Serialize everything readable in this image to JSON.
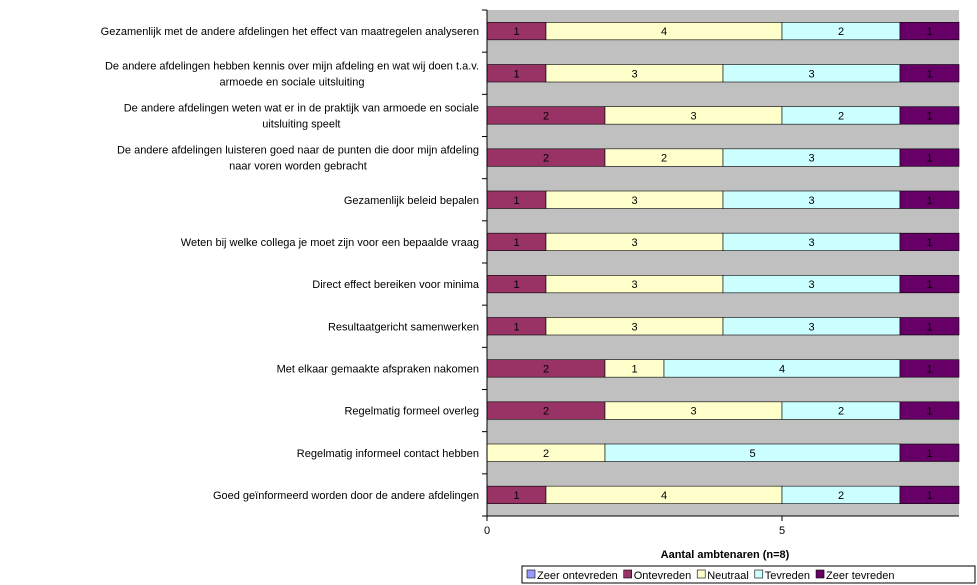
{
  "chart_data": {
    "type": "bar",
    "orientation": "horizontal",
    "stacked": true,
    "categories": [
      [
        "Gezamenlijk met de andere afdelingen het effect van maatregelen analyseren"
      ],
      [
        "De andere afdelingen hebben kennis over mijn afdeling en wat wij doen t.a.v.",
        "armoede en sociale uitsluiting"
      ],
      [
        "De andere afdelingen weten wat er in de praktijk van armoede en sociale",
        "uitsluiting speelt"
      ],
      [
        "De andere afdelingen luisteren goed naar de punten die door mijn afdeling",
        "naar voren worden gebracht"
      ],
      [
        "Gezamenlijk beleid bepalen"
      ],
      [
        "Weten bij welke collega je moet zijn voor een bepaalde vraag"
      ],
      [
        "Direct effect bereiken voor minima"
      ],
      [
        "Resultaatgericht samenwerken"
      ],
      [
        "Met elkaar gemaakte afspraken nakomen"
      ],
      [
        "Regelmatig formeel overleg"
      ],
      [
        "Regelmatig informeel contact hebben"
      ],
      [
        "Goed geïnformeerd worden door de andere afdelingen"
      ]
    ],
    "series": [
      {
        "name": "Zeer ontevreden",
        "color": "#9999ff",
        "values": [
          0,
          0,
          0,
          0,
          0,
          0,
          0,
          0,
          0,
          0,
          0,
          0
        ]
      },
      {
        "name": "Ontevreden",
        "color": "#993366",
        "values": [
          1,
          1,
          2,
          2,
          1,
          1,
          1,
          1,
          2,
          2,
          0,
          1
        ]
      },
      {
        "name": "Neutraal",
        "color": "#ffffcc",
        "values": [
          4,
          3,
          3,
          2,
          3,
          3,
          3,
          3,
          1,
          3,
          2,
          4
        ]
      },
      {
        "name": "Tevreden",
        "color": "#ccffff",
        "values": [
          2,
          3,
          2,
          3,
          3,
          3,
          3,
          3,
          4,
          2,
          5,
          2
        ]
      },
      {
        "name": "Zeer tevreden",
        "color": "#660066",
        "values": [
          1,
          1,
          1,
          1,
          1,
          1,
          1,
          1,
          1,
          1,
          1,
          1
        ]
      }
    ],
    "xlabel": "Aantal ambtenaren (n=8)",
    "xlim": [
      0,
      8
    ],
    "xticks": [
      0,
      5
    ],
    "plot_background": "#c0c0c0",
    "legend_position": "bottom-right",
    "grid": false
  }
}
